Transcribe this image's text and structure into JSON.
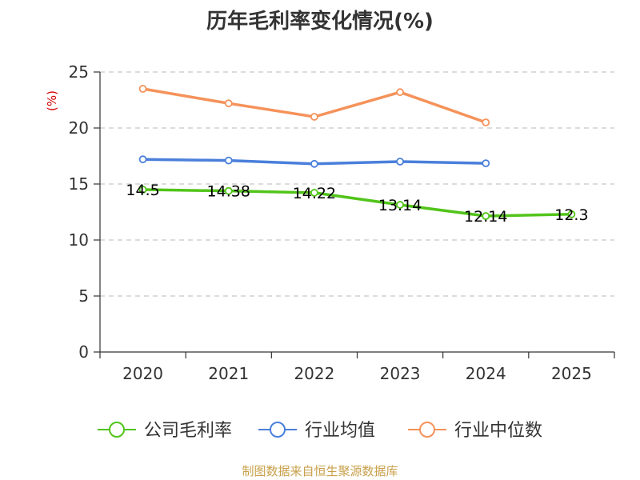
{
  "chart_data": {
    "type": "line",
    "title": "历年毛利率变化情况(%)",
    "ylabel": "(%)",
    "categories": [
      "2020",
      "2021",
      "2022",
      "2023",
      "2024",
      "2025"
    ],
    "ylim": [
      0,
      25
    ],
    "yticks": [
      0,
      5,
      10,
      15,
      20,
      25
    ],
    "grid": true,
    "legend_position": "bottom",
    "series": [
      {
        "name": "公司毛利率",
        "color": "#52c41a",
        "values": [
          14.5,
          14.38,
          14.22,
          13.14,
          12.14,
          12.3
        ],
        "labels": [
          "14.5",
          "14.38",
          "14.22",
          "13.14",
          "12.14",
          "12.3"
        ]
      },
      {
        "name": "行业均值",
        "color": "#4a7fdb",
        "values": [
          17.2,
          17.1,
          16.8,
          17.0,
          16.85,
          null
        ]
      },
      {
        "name": "行业中位数",
        "color": "#f5925a",
        "values": [
          23.5,
          22.2,
          21.0,
          23.2,
          20.5,
          null
        ]
      }
    ]
  },
  "footer": {
    "source": "制图数据来自恒生聚源数据库"
  }
}
